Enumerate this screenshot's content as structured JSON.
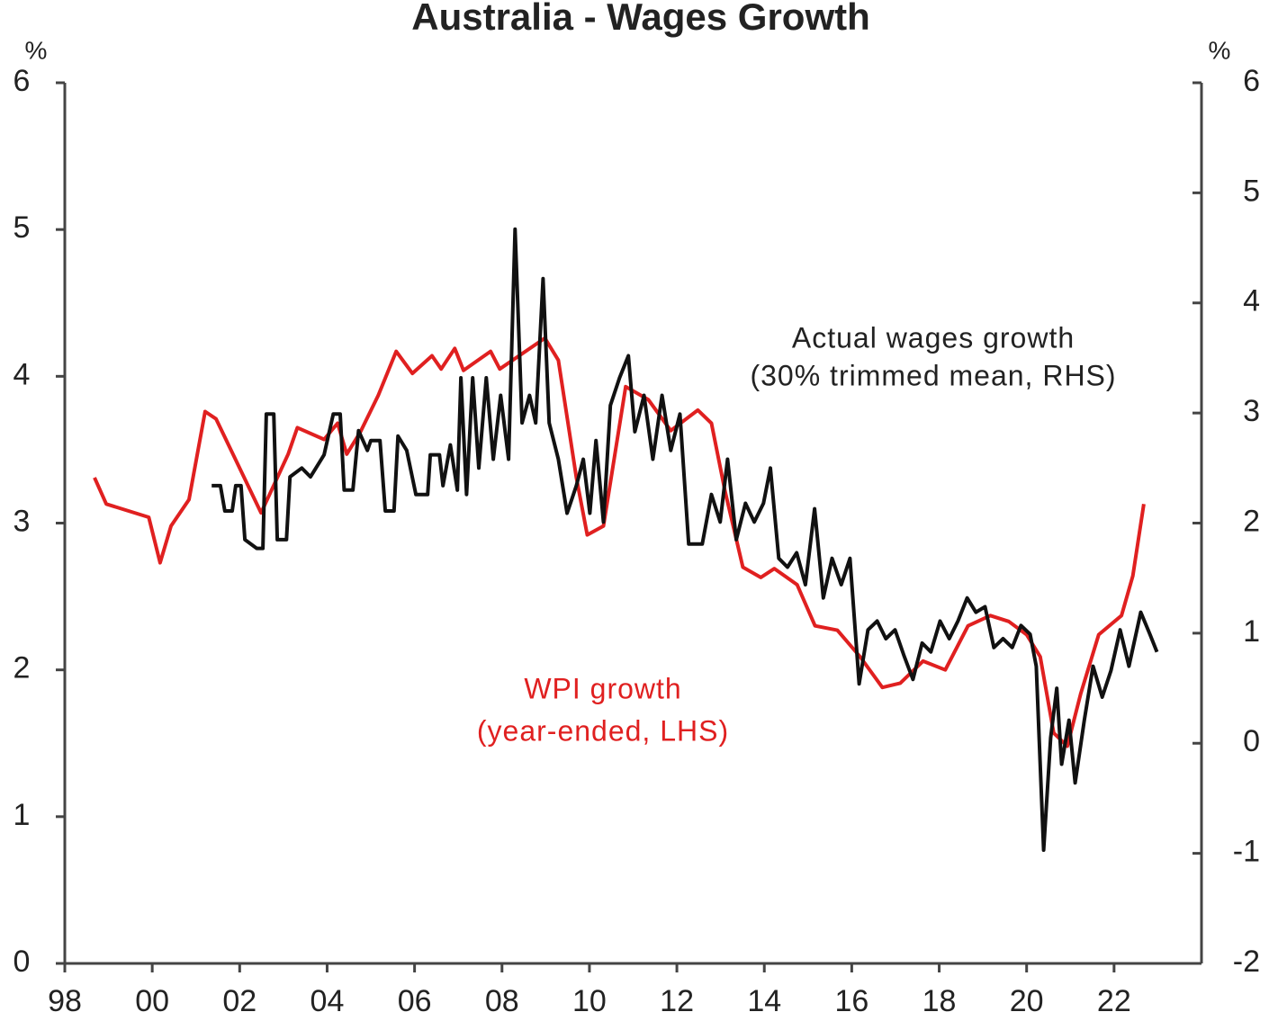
{
  "chart_data": {
    "type": "line",
    "title": "Australia - Wages Growth",
    "y_unit": "%",
    "y2_unit": "%",
    "xlim": [
      1998,
      2024
    ],
    "xticks": [
      {
        "value": 1998,
        "label": "98"
      },
      {
        "value": 2000,
        "label": "00"
      },
      {
        "value": 2002,
        "label": "02"
      },
      {
        "value": 2004,
        "label": "04"
      },
      {
        "value": 2006,
        "label": "06"
      },
      {
        "value": 2008,
        "label": "08"
      },
      {
        "value": 2010,
        "label": "10"
      },
      {
        "value": 2012,
        "label": "12"
      },
      {
        "value": 2014,
        "label": "14"
      },
      {
        "value": 2016,
        "label": "16"
      },
      {
        "value": 2018,
        "label": "18"
      },
      {
        "value": 2020,
        "label": "20"
      },
      {
        "value": 2022,
        "label": "22"
      }
    ],
    "ylim": [
      0,
      6
    ],
    "yticks": [
      0,
      1,
      2,
      3,
      4,
      5,
      6
    ],
    "y2lim": [
      -2,
      6
    ],
    "y2ticks": [
      -2,
      -1,
      0,
      1,
      2,
      3,
      4,
      5,
      6
    ],
    "series": [
      {
        "name": "WPI growth",
        "note": "(year-ended, LHS)",
        "color": "#e02020",
        "axis": "y",
        "x": [
          1998.68,
          1998.95,
          1999.92,
          2000.18,
          2000.43,
          2000.84,
          2001.21,
          2001.46,
          2002.49,
          2003.11,
          2003.32,
          2003.93,
          2004.24,
          2004.45,
          2004.76,
          2005.17,
          2005.58,
          2005.95,
          2006.4,
          2006.61,
          2006.92,
          2007.12,
          2007.74,
          2007.95,
          2008.98,
          2009.29,
          2009.7,
          2009.95,
          2010.32,
          2010.83,
          2011.35,
          2011.86,
          2012.48,
          2012.79,
          2013.1,
          2013.51,
          2013.92,
          2014.23,
          2014.75,
          2015.16,
          2015.67,
          2016.19,
          2016.7,
          2017.11,
          2017.63,
          2018.14,
          2018.66,
          2019.17,
          2019.59,
          2020.0,
          2020.31,
          2020.62,
          2020.93,
          2021.24,
          2021.65,
          2022.17,
          2022.43,
          2022.68
        ],
        "values": [
          3.31,
          3.13,
          3.04,
          2.73,
          2.98,
          3.16,
          3.76,
          3.71,
          3.07,
          3.47,
          3.65,
          3.57,
          3.68,
          3.47,
          3.62,
          3.87,
          4.17,
          4.02,
          4.14,
          4.05,
          4.19,
          4.04,
          4.17,
          4.05,
          4.26,
          4.11,
          3.31,
          2.92,
          2.98,
          3.93,
          3.84,
          3.63,
          3.77,
          3.68,
          3.22,
          2.7,
          2.63,
          2.69,
          2.58,
          2.3,
          2.27,
          2.09,
          1.88,
          1.91,
          2.06,
          2.0,
          2.3,
          2.37,
          2.33,
          2.24,
          2.09,
          1.57,
          1.48,
          1.84,
          2.24,
          2.37,
          2.64,
          3.13
        ]
      },
      {
        "name": "Actual wages growth",
        "note": "(30% trimmed mean, RHS)",
        "color": "#111111",
        "axis": "y2",
        "x": [
          2001.36,
          2001.56,
          2001.66,
          2001.83,
          2001.91,
          2002.03,
          2002.12,
          2002.39,
          2002.53,
          2002.61,
          2002.78,
          2002.86,
          2003.07,
          2003.15,
          2003.42,
          2003.62,
          2003.93,
          2004.14,
          2004.3,
          2004.39,
          2004.59,
          2004.72,
          2004.92,
          2005.0,
          2005.21,
          2005.33,
          2005.53,
          2005.62,
          2005.82,
          2006.03,
          2006.3,
          2006.36,
          2006.57,
          2006.65,
          2006.82,
          2006.98,
          2007.06,
          2007.19,
          2007.33,
          2007.47,
          2007.64,
          2007.8,
          2007.97,
          2008.15,
          2008.3,
          2008.46,
          2008.63,
          2008.77,
          2008.94,
          2009.08,
          2009.29,
          2009.49,
          2009.7,
          2009.86,
          2010.01,
          2010.15,
          2010.32,
          2010.48,
          2010.69,
          2010.89,
          2011.04,
          2011.25,
          2011.45,
          2011.66,
          2011.86,
          2012.07,
          2012.27,
          2012.58,
          2012.79,
          2012.99,
          2013.16,
          2013.36,
          2013.57,
          2013.77,
          2013.98,
          2014.14,
          2014.33,
          2014.53,
          2014.74,
          2014.94,
          2015.15,
          2015.35,
          2015.55,
          2015.76,
          2015.96,
          2016.17,
          2016.37,
          2016.58,
          2016.78,
          2016.99,
          2017.2,
          2017.4,
          2017.61,
          2017.81,
          2018.02,
          2018.23,
          2018.43,
          2018.64,
          2018.84,
          2019.05,
          2019.25,
          2019.46,
          2019.67,
          2019.87,
          2020.08,
          2020.22,
          2020.39,
          2020.55,
          2020.69,
          2020.8,
          2020.97,
          2021.11,
          2021.32,
          2021.52,
          2021.73,
          2021.93,
          2022.14,
          2022.34,
          2022.61,
          2022.82,
          2022.98
        ],
        "values": [
          2.34,
          2.34,
          2.11,
          2.11,
          2.34,
          2.34,
          1.85,
          1.77,
          1.77,
          2.99,
          2.99,
          1.85,
          1.85,
          2.42,
          2.5,
          2.42,
          2.62,
          2.99,
          2.99,
          2.3,
          2.3,
          2.84,
          2.66,
          2.75,
          2.75,
          2.11,
          2.11,
          2.79,
          2.66,
          2.26,
          2.26,
          2.62,
          2.62,
          2.34,
          2.71,
          2.3,
          3.32,
          2.26,
          3.32,
          2.5,
          3.32,
          2.58,
          3.16,
          2.58,
          4.67,
          2.91,
          3.16,
          2.91,
          4.22,
          2.91,
          2.58,
          2.09,
          2.34,
          2.58,
          2.09,
          2.75,
          2.01,
          3.07,
          3.32,
          3.52,
          2.83,
          3.16,
          2.58,
          3.16,
          2.66,
          2.99,
          1.81,
          1.81,
          2.26,
          2.01,
          2.58,
          1.85,
          2.18,
          2.01,
          2.18,
          2.5,
          1.68,
          1.6,
          1.73,
          1.44,
          2.13,
          1.32,
          1.68,
          1.44,
          1.68,
          0.54,
          1.03,
          1.11,
          0.95,
          1.03,
          0.79,
          0.58,
          0.91,
          0.83,
          1.11,
          0.95,
          1.11,
          1.32,
          1.19,
          1.24,
          0.87,
          0.95,
          0.87,
          1.07,
          0.99,
          0.7,
          -0.97,
          0.05,
          0.5,
          -0.19,
          0.21,
          -0.36,
          0.21,
          0.7,
          0.42,
          0.66,
          1.03,
          0.7,
          1.19,
          0.99,
          0.83
        ]
      }
    ]
  }
}
